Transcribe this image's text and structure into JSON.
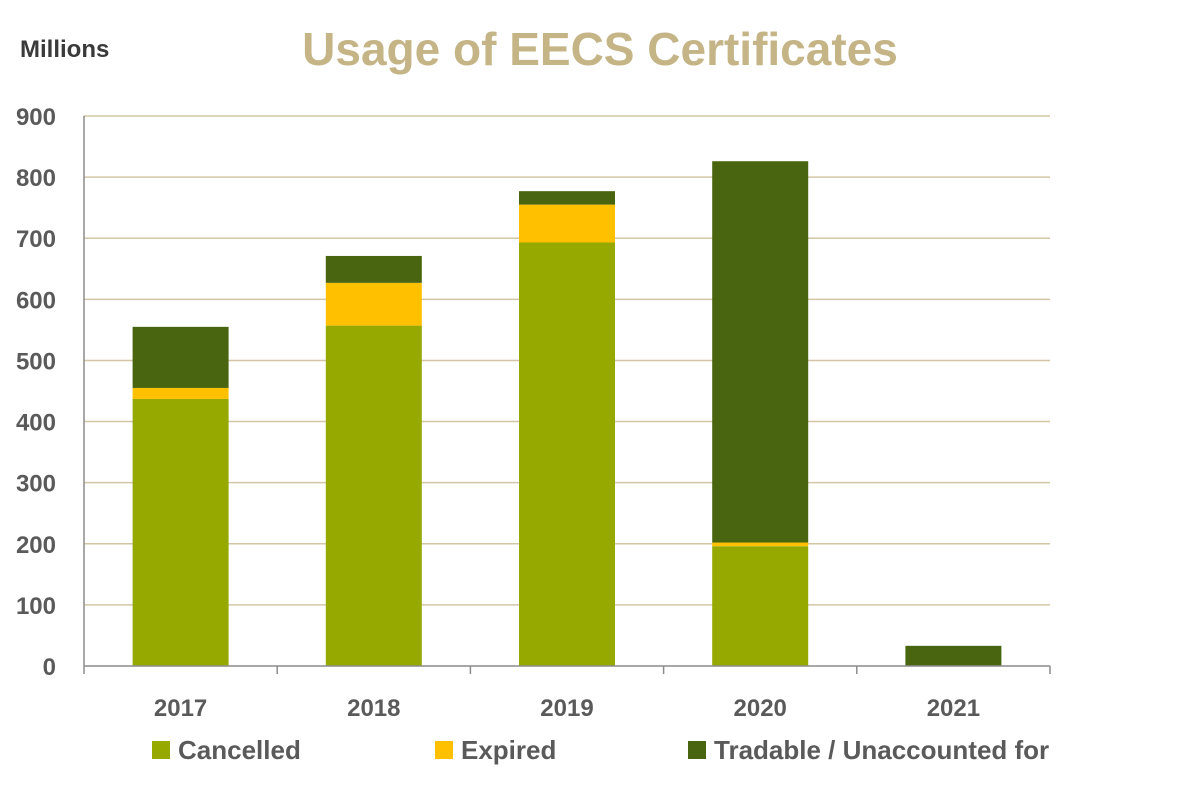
{
  "chart_data": {
    "type": "bar",
    "stacked": true,
    "title": "Usage of EECS Certificates",
    "ylabel": "Millions",
    "xlabel": "",
    "categories": [
      "2017",
      "2018",
      "2019",
      "2020",
      "2021"
    ],
    "series": [
      {
        "name": "Cancelled",
        "color": "#95a900",
        "values": [
          437,
          557,
          693,
          196,
          0
        ]
      },
      {
        "name": "Expired",
        "color": "#ffc000",
        "values": [
          18,
          70,
          62,
          6,
          0
        ]
      },
      {
        "name": "Tradable / Unaccounted for",
        "color": "#4a6510",
        "values": [
          100,
          44,
          22,
          624,
          33
        ]
      }
    ],
    "ylim": [
      0,
      900
    ],
    "yticks": [
      0,
      100,
      200,
      300,
      400,
      500,
      600,
      700,
      800,
      900
    ],
    "grid": true,
    "legend_position": "bottom"
  }
}
